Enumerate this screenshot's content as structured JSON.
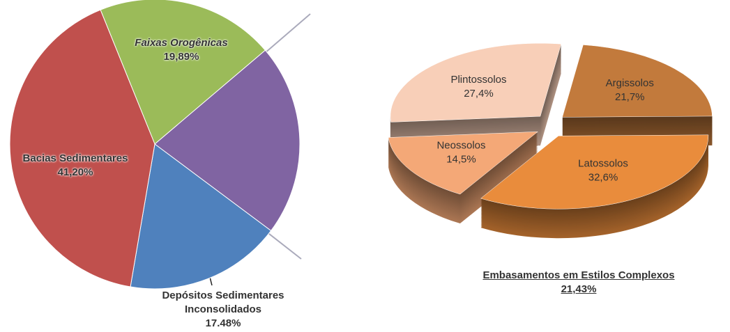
{
  "chart_data": [
    {
      "type": "pie",
      "categories": [
        "Faixas Orogênicas",
        "Embasamentos em Estilos Complexos",
        "Depósitos Sedimentares Inconsolidados",
        "Bacias Sedimentares"
      ],
      "values": [
        19.89,
        21.43,
        17.48,
        41.2
      ],
      "value_labels": [
        "19,89%",
        "21,43%",
        "17.48%",
        "41,20%"
      ],
      "colors": [
        "#9bbb59",
        "#8064a2",
        "#4f81bd",
        "#c0504d"
      ]
    },
    {
      "type": "pie3d",
      "categories": [
        "Argissolos",
        "Latossolos",
        "Neossolos",
        "Plintossolos"
      ],
      "values": [
        21.7,
        32.6,
        14.5,
        27.4
      ],
      "value_labels": [
        "21,7%",
        "32,6%",
        "14,5%",
        "27,4%"
      ],
      "colors": [
        "#c27a3c",
        "#e98c3c",
        "#f4a877",
        "#f8cfb8"
      ]
    }
  ]
}
